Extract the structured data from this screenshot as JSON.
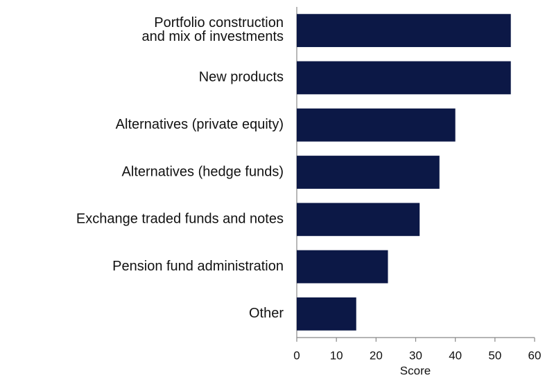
{
  "chart_data": {
    "type": "barh",
    "x_label": "Score",
    "categories": [
      "Portfolio construction\nand mix of investments",
      "New products",
      "Alternatives (private equity)",
      "Alternatives (hedge funds)",
      "Exchange traded funds and notes",
      "Pension fund administration",
      "Other"
    ],
    "values": [
      54,
      54,
      40,
      36,
      31,
      23,
      15
    ],
    "color": "#0c1846",
    "xlim": [
      0,
      60
    ],
    "xticks": [
      0,
      10,
      20,
      30,
      40,
      50,
      60
    ]
  }
}
